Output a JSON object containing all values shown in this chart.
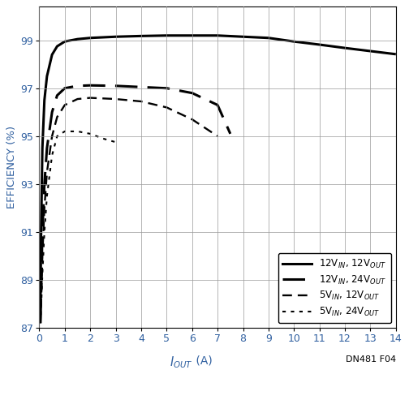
{
  "ylabel": "EFFICIENCY (%)",
  "xlim": [
    0,
    14
  ],
  "ylim": [
    87,
    100.4
  ],
  "yticks": [
    87,
    89,
    91,
    93,
    95,
    97,
    99
  ],
  "xticks": [
    0,
    1,
    2,
    3,
    4,
    5,
    6,
    7,
    8,
    9,
    10,
    11,
    12,
    13,
    14
  ],
  "annotation": "DN481 F04",
  "label_color": "#3060a0",
  "grid_color": "#999999",
  "curves": {
    "12Vin_12Vout": {
      "x": [
        0.04,
        0.07,
        0.12,
        0.2,
        0.3,
        0.5,
        0.7,
        1.0,
        1.5,
        2.0,
        3.0,
        4.0,
        5.0,
        6.0,
        7.0,
        8.0,
        9.0,
        10.0,
        11.0,
        12.0,
        13.0,
        14.0
      ],
      "y": [
        87.2,
        91.0,
        94.5,
        96.5,
        97.5,
        98.4,
        98.75,
        98.95,
        99.05,
        99.1,
        99.15,
        99.18,
        99.2,
        99.2,
        99.2,
        99.15,
        99.1,
        98.95,
        98.82,
        98.68,
        98.55,
        98.42
      ],
      "linewidth": 2.2,
      "dashes": [],
      "color": "#000000"
    },
    "12Vin_24Vout": {
      "x": [
        0.04,
        0.07,
        0.12,
        0.2,
        0.3,
        0.5,
        0.7,
        1.0,
        1.5,
        2.0,
        3.0,
        4.0,
        5.0,
        6.0,
        7.0,
        7.5
      ],
      "y": [
        87.2,
        88.5,
        91.0,
        93.0,
        94.5,
        96.0,
        96.7,
        97.0,
        97.1,
        97.12,
        97.1,
        97.05,
        97.0,
        96.8,
        96.3,
        95.1
      ],
      "linewidth": 2.2,
      "dashes": [
        9,
        4
      ],
      "color": "#000000"
    },
    "5Vin_12Vout": {
      "x": [
        0.04,
        0.07,
        0.12,
        0.2,
        0.3,
        0.5,
        0.7,
        1.0,
        1.5,
        2.0,
        3.0,
        4.0,
        5.0,
        6.0,
        7.0
      ],
      "y": [
        87.2,
        88.0,
        90.0,
        92.0,
        93.5,
        95.0,
        95.8,
        96.3,
        96.55,
        96.6,
        96.55,
        96.45,
        96.2,
        95.7,
        95.0
      ],
      "linewidth": 1.7,
      "dashes": [
        5,
        3
      ],
      "color": "#000000"
    },
    "5Vin_24Vout": {
      "x": [
        0.04,
        0.07,
        0.12,
        0.2,
        0.3,
        0.5,
        0.7,
        1.0,
        1.5,
        2.0,
        2.5,
        3.0
      ],
      "y": [
        87.2,
        87.8,
        89.2,
        91.0,
        92.5,
        94.2,
        95.0,
        95.2,
        95.2,
        95.1,
        94.9,
        94.75
      ],
      "linewidth": 1.5,
      "dashes": [
        2,
        3
      ],
      "color": "#000000"
    }
  }
}
